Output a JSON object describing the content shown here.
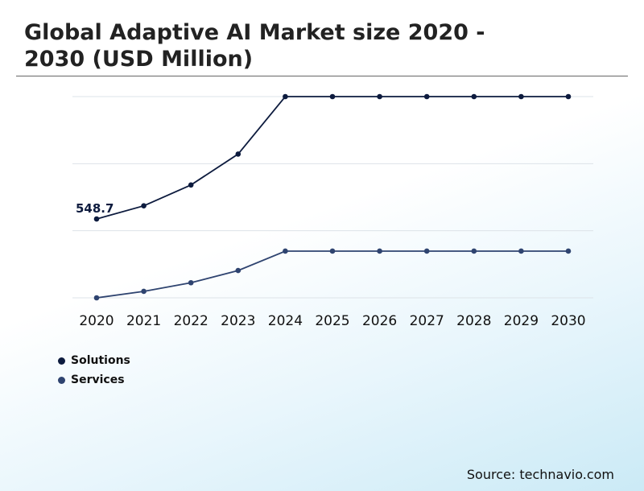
{
  "title": "Global Adaptive AI Market size 2020 - 2030 (USD Million)",
  "source": "Source: technavio.com",
  "colors": {
    "solutions": "#0d1b3e",
    "services": "#2f4470",
    "grid": "#dde3e8"
  },
  "chart_data": {
    "type": "line",
    "title": "Global Adaptive AI Market size 2020 - 2030 (USD Million)",
    "xlabel": "",
    "ylabel": "",
    "x": [
      "2020",
      "2021",
      "2022",
      "2023",
      "2024",
      "2025",
      "2026",
      "2027",
      "2028",
      "2029",
      "2030"
    ],
    "ylim": [
      0,
      1400
    ],
    "grid": true,
    "legend_position": "bottom-left",
    "series": [
      {
        "name": "Solutions",
        "color": "#0d1b3e",
        "values": [
          548.7,
          640,
          785,
          1000,
          1400,
          1400,
          1400,
          1400,
          1400,
          1400,
          1400
        ]
      },
      {
        "name": "Services",
        "color": "#2f4470",
        "values": [
          0,
          45,
          105,
          190,
          325,
          325,
          325,
          325,
          325,
          325,
          325
        ]
      }
    ],
    "annotations": [
      {
        "series": 0,
        "index": 0,
        "text": "548.7"
      }
    ]
  }
}
